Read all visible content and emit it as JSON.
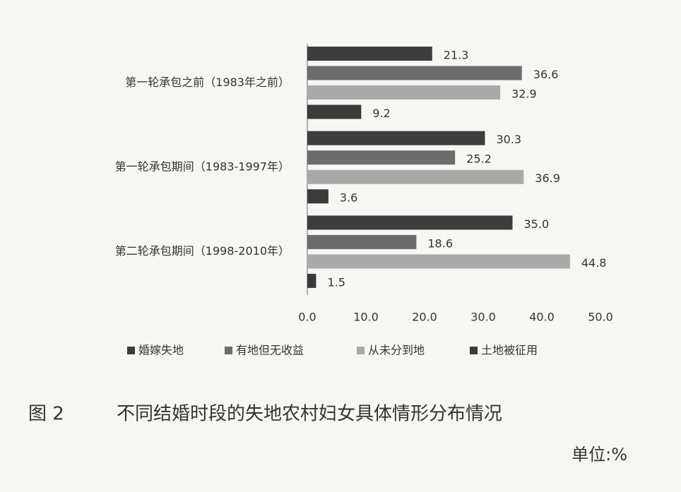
{
  "chart_data": {
    "type": "bar",
    "orientation": "horizontal",
    "categories": [
      "第一轮承包之前（1983年之前）",
      "第一轮承包期间（1983-1997年）",
      "第二轮承包期间（1998-2010年）"
    ],
    "series": [
      {
        "name": "婚嫁失地",
        "color": "#3d3d3d",
        "values": [
          21.3,
          30.3,
          35.0
        ],
        "value_labels": [
          "21.3",
          "30.3",
          "35.0"
        ]
      },
      {
        "name": "有地但无收益",
        "color": "#6c6c6c",
        "values": [
          36.6,
          25.2,
          18.6
        ],
        "value_labels": [
          "36.6",
          "25.2",
          "18.6"
        ]
      },
      {
        "name": "从未分到地",
        "color": "#a9a9a9",
        "values": [
          32.9,
          36.9,
          44.8
        ],
        "value_labels": [
          "32.9",
          "36.9",
          "44.8"
        ]
      },
      {
        "name": "土地被征用",
        "color": "#3a3a3a",
        "values": [
          9.2,
          3.6,
          1.5
        ],
        "value_labels": [
          "9.2",
          "3.6",
          "1.5"
        ]
      }
    ],
    "xlim": [
      0,
      50
    ],
    "xticks": [
      {
        "value": 0,
        "label": "0.0"
      },
      {
        "value": 10,
        "label": "10.0"
      },
      {
        "value": 20,
        "label": "20.0"
      },
      {
        "value": 30,
        "label": "30.0"
      },
      {
        "value": 40,
        "label": "40.0"
      },
      {
        "value": 50,
        "label": "50.0"
      }
    ],
    "legend": "bottom",
    "figure_label": "图 2",
    "caption": "不同结婚时段的失地农村妇女具体情形分布情况",
    "unit": "单位:%"
  }
}
